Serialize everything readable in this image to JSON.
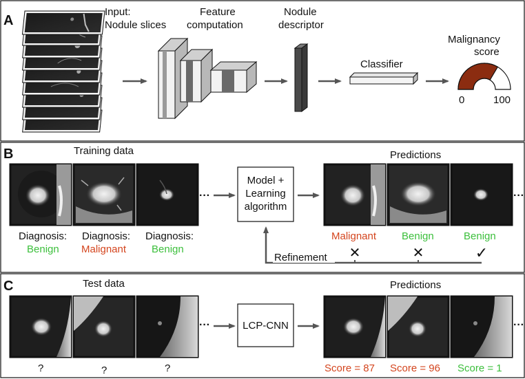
{
  "colors": {
    "benign": "#3cbf3c",
    "malignant": "#d4451e",
    "malignant_dark": "#8b2c10",
    "frame": "#222222",
    "arrow": "#555555"
  },
  "panel_a": {
    "letter": "A",
    "input_label_1": "Input:",
    "input_label_2": "Nodule slices",
    "feature_label_1": "Feature",
    "feature_label_2": "computation",
    "descriptor_label_1": "Nodule",
    "descriptor_label_2": "descriptor",
    "classifier_label": "Classifier",
    "score_label_1": "Malignancy",
    "score_label_2": "score",
    "gauge_min": "0",
    "gauge_max": "100",
    "gauge_fill_fraction": 0.67
  },
  "panel_b": {
    "letter": "B",
    "training_title": "Training data",
    "predictions_title": "Predictions",
    "diagnosis_prefix": "Diagnosis:",
    "training_items": [
      {
        "diagnosis": "Benign",
        "status": "benign"
      },
      {
        "diagnosis": "Malignant",
        "status": "malignant"
      },
      {
        "diagnosis": "Benign",
        "status": "benign"
      }
    ],
    "ellipsis": "···",
    "model_line_1": "Model +",
    "model_line_2": "Learning",
    "model_line_3": "algorithm",
    "prediction_items": [
      {
        "label": "Malignant",
        "status": "malignant",
        "mark": "✕"
      },
      {
        "label": "Benign",
        "status": "benign",
        "mark": "✕"
      },
      {
        "label": "Benign",
        "status": "benign",
        "mark": "✓"
      }
    ],
    "refinement_label": "Refinement"
  },
  "panel_c": {
    "letter": "C",
    "test_title": "Test data",
    "predictions_title": "Predictions",
    "test_marks": [
      "?",
      "?",
      "?"
    ],
    "model_label": "LCP-CNN",
    "ellipsis": "···",
    "scores": [
      {
        "text": "Score = 87",
        "status": "malignant"
      },
      {
        "text": "Score = 96",
        "status": "malignant"
      },
      {
        "text": "Score = 1",
        "status": "benign"
      }
    ]
  }
}
